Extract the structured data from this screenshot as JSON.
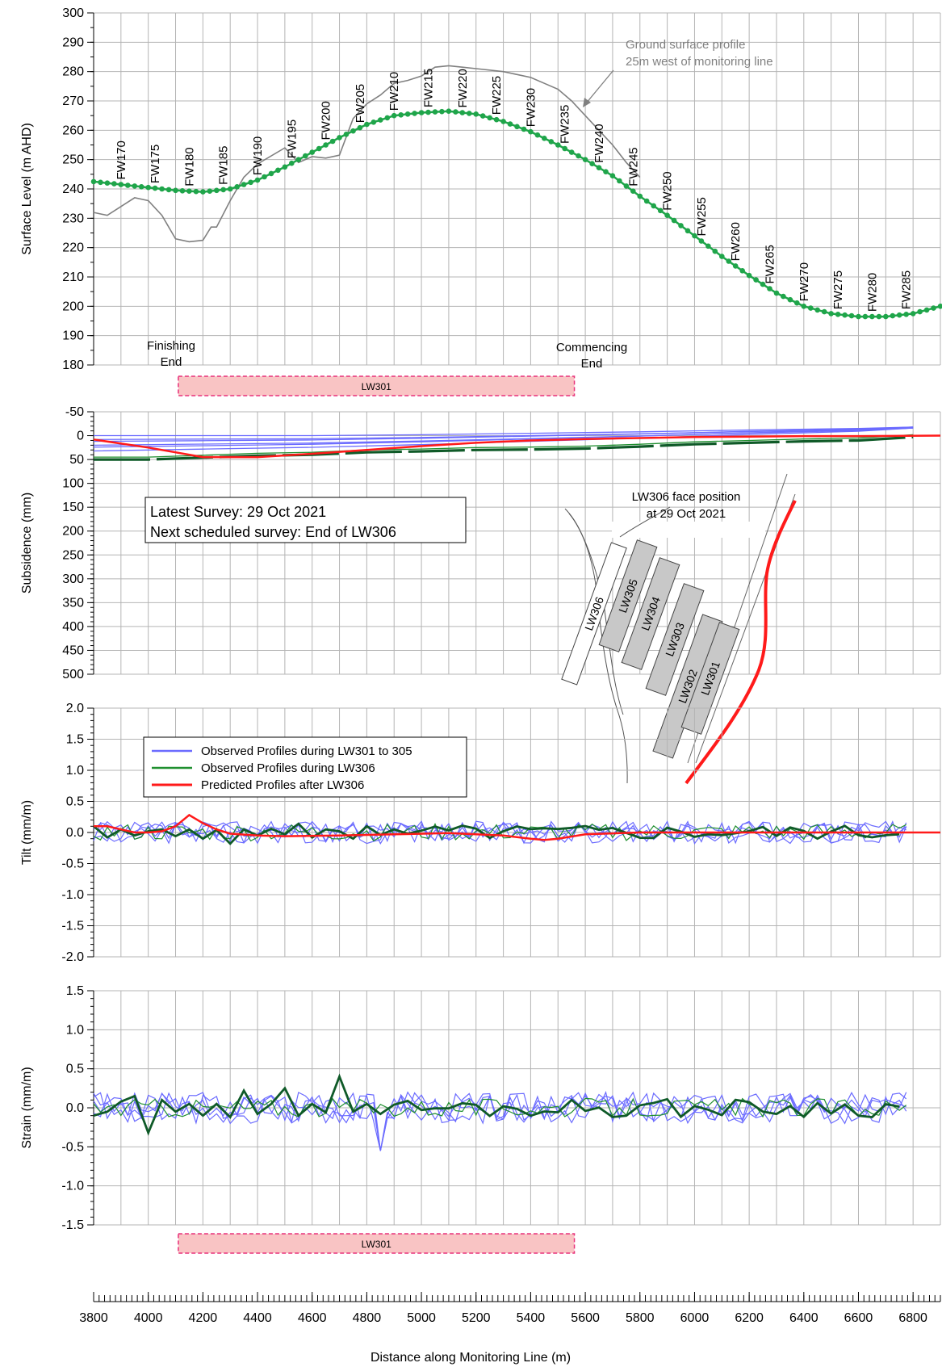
{
  "colors": {
    "grid": "#b4b4b4",
    "axis": "#000000",
    "observed_301_305": "#6b6bff",
    "observed_306": "#1f8f2f",
    "observed_306_dark": "#0f5a28",
    "predicted": "#ff1a1a",
    "ground": "#808080",
    "panel_fill": "#f9c4c4",
    "panel_edge": "#e8307a",
    "marker": "#1fa54a"
  },
  "x_axis": {
    "label": "Distance along Monitoring Line (m)",
    "range": [
      3800,
      6900
    ],
    "ticks": [
      3800,
      4000,
      4200,
      4400,
      4600,
      4800,
      5000,
      5200,
      5400,
      5600,
      5800,
      6000,
      6200,
      6400,
      6600,
      6800
    ]
  },
  "charts": {
    "level": {
      "ylabel": "Surface Level (m AHD)",
      "ylim": [
        180,
        300
      ],
      "yticks": [
        "180",
        "190",
        "200",
        "210",
        "220",
        "230",
        "240",
        "250",
        "260",
        "270",
        "280",
        "290",
        "300"
      ],
      "ground_note": [
        "Ground surface profile",
        "25m west of monitoring line"
      ],
      "finishing_end": [
        "Finishing",
        "End"
      ],
      "commencing_end": [
        "Commencing",
        "End"
      ],
      "panel_label": "LW301"
    },
    "subsidence": {
      "ylabel": "Subsidence (mm)",
      "ylim": [
        -50,
        500
      ],
      "yticks": [
        "-50",
        "0",
        "50",
        "100",
        "150",
        "200",
        "250",
        "300",
        "350",
        "400",
        "450",
        "500"
      ],
      "survey_lines": [
        "Latest Survey: 29 Oct 2021",
        "Next scheduled survey: End of LW306"
      ],
      "face_note": [
        "LW306 face position",
        "at 29 Oct 2021"
      ],
      "inset_panels": [
        "LW306",
        "LW305",
        "LW304",
        "LW303",
        "LW302",
        "LW301"
      ]
    },
    "tilt": {
      "ylabel": "Tilt (mm/m)",
      "ylim": [
        -2.0,
        2.0
      ],
      "yticks": [
        "-2.0",
        "-1.5",
        "-1.0",
        "-0.5",
        "0.0",
        "0.5",
        "1.0",
        "1.5",
        "2.0"
      ],
      "legend": [
        {
          "label": "Observed Profiles during LW301 to 305",
          "color": "#6b6bff"
        },
        {
          "label": "Observed Profiles during LW306",
          "color": "#1f8f2f"
        },
        {
          "label": "Predicted Profiles after LW306",
          "color": "#ff1a1a"
        }
      ]
    },
    "strain": {
      "ylabel": "Strain (mm/m)",
      "ylim": [
        -1.5,
        1.5
      ],
      "yticks": [
        "-1.5",
        "-1.0",
        "-0.5",
        "0.0",
        "0.5",
        "1.0",
        "1.5"
      ],
      "panel_label": "LW301"
    }
  },
  "chart_data": [
    {
      "type": "line",
      "ylabel": "Surface Level (m AHD)",
      "xlim": [
        3800,
        6900
      ],
      "ylim": [
        180,
        300
      ],
      "series": [
        {
          "name": "monitoring line",
          "x": [
            3800,
            3900,
            4000,
            4100,
            4200,
            4300,
            4400,
            4500,
            4600,
            4700,
            4800,
            4900,
            5000,
            5100,
            5200,
            5300,
            5400,
            5500,
            5600,
            5700,
            5800,
            5900,
            6000,
            6100,
            6200,
            6300,
            6400,
            6500,
            6600,
            6700,
            6800,
            6900
          ],
          "y": [
            242.5,
            241.5,
            240.5,
            239.5,
            239,
            240,
            243,
            247.5,
            252.5,
            257.5,
            262,
            265,
            266,
            266.5,
            265.5,
            263,
            259.5,
            255,
            250,
            244.5,
            237.5,
            231,
            224,
            217,
            210.5,
            204.5,
            200,
            197.5,
            196.5,
            196.5,
            197.5,
            200
          ]
        },
        {
          "name": "ground surface",
          "x": [
            3800,
            3850,
            3900,
            3950,
            4000,
            4050,
            4100,
            4150,
            4200,
            4230,
            4250,
            4300,
            4350,
            4400,
            4500,
            4550,
            4600,
            4650,
            4700,
            4750,
            4800,
            4850,
            4900,
            4950,
            5000,
            5050,
            5100,
            5150,
            5200,
            5300,
            5400,
            5450,
            5500,
            5550,
            5600,
            5650,
            5700,
            5750,
            5800
          ],
          "y": [
            232,
            231,
            234,
            237,
            236,
            231,
            223,
            222,
            222.5,
            227,
            227,
            236,
            244,
            248.5,
            254,
            249,
            251,
            250.5,
            251.5,
            264,
            269,
            272,
            276,
            277,
            278.5,
            281.5,
            282,
            281.5,
            281,
            280,
            278,
            276,
            274,
            270,
            265,
            260,
            255,
            249,
            244
          ]
        }
      ],
      "point_labels": [
        "FW170",
        "FW175",
        "FW180",
        "FW185",
        "FW190",
        "FW195",
        "FW200",
        "FW205",
        "FW210",
        "FW215",
        "FW220",
        "FW225",
        "FW230",
        "FW235",
        "FW240",
        "FW245",
        "FW250",
        "FW255",
        "FW260",
        "FW265",
        "FW270",
        "FW275",
        "FW280",
        "FW285"
      ],
      "point_label_x": [
        3900,
        4025,
        4150,
        4275,
        4400,
        4525,
        4650,
        4775,
        4900,
        5025,
        5150,
        5275,
        5400,
        5525,
        5650,
        5775,
        5900,
        6025,
        6150,
        6275,
        6400,
        6525,
        6650,
        6775
      ]
    },
    {
      "type": "line",
      "ylabel": "Subsidence (mm)",
      "xlim": [
        3800,
        6900
      ],
      "ylim": [
        -50,
        500
      ],
      "series": [
        {
          "name": "Predicted Profiles after LW306",
          "x": [
            3800,
            4000,
            4200,
            4400,
            4600,
            4800,
            5000,
            5200,
            5400,
            5600,
            5800,
            6000,
            6200,
            6400,
            6600,
            6900
          ],
          "y": [
            8,
            25,
            45,
            45,
            38,
            30,
            22,
            15,
            10,
            7,
            5,
            3,
            2,
            1,
            1,
            0
          ]
        },
        {
          "name": "Observed Profiles during LW306",
          "x": [
            3800,
            4000,
            4200,
            4400,
            4600,
            4800,
            5000,
            5200,
            5400,
            5600,
            5800,
            6000,
            6200,
            6400,
            6600,
            6800
          ],
          "y": [
            50,
            50,
            46,
            42,
            40,
            35,
            33,
            30,
            29,
            27,
            23,
            18,
            15,
            12,
            10,
            3
          ]
        },
        {
          "name": "Observed Profiles during LW301 to 305",
          "x": [
            3800,
            4200,
            4600,
            5000,
            5400,
            5800,
            6200,
            6600,
            6800
          ],
          "y": [
            0,
            0,
            0,
            -2,
            -5,
            -8,
            -12,
            -15,
            -18
          ]
        }
      ]
    },
    {
      "type": "line",
      "ylabel": "Tilt (mm/m)",
      "xlim": [
        3800,
        6900
      ],
      "ylim": [
        -2.0,
        2.0
      ],
      "series": [
        {
          "name": "Predicted Profiles after LW306",
          "x": [
            3800,
            3850,
            3900,
            3950,
            4000,
            4050,
            4100,
            4150,
            4200,
            4250,
            4300,
            4400,
            4500,
            4700,
            4900,
            5100,
            5300,
            5400,
            5450,
            5500,
            5600,
            5800,
            6900
          ],
          "y": [
            0.1,
            0.1,
            0.05,
            0,
            0,
            0.02,
            0.1,
            0.28,
            0.15,
            0.05,
            -0.02,
            -0.05,
            -0.06,
            -0.05,
            -0.03,
            -0.01,
            -0.05,
            -0.1,
            -0.12,
            -0.1,
            -0.03,
            0,
            0
          ]
        },
        {
          "name": "Observed Profiles during LW306",
          "x": [
            3800,
            3850,
            3900,
            3950,
            4000,
            4050,
            4100,
            4150,
            4200,
            4250,
            4300,
            4350,
            4400,
            4450,
            4500,
            4550,
            4600,
            4650,
            4700,
            4750,
            4800,
            4850,
            4900,
            4950,
            5000
          ],
          "y": [
            0.1,
            -0.08,
            0.05,
            -0.05,
            0.02,
            0.05,
            -0.06,
            0.05,
            -0.1,
            0.04,
            -0.18,
            0.05,
            -0.05,
            0.06,
            -0.03,
            0.14,
            -0.08,
            0.05,
            0.02,
            -0.1,
            0.1,
            -0.04,
            0.05,
            -0.02,
            0.03
          ]
        },
        {
          "name": "Observed Profiles during LW301 to 305",
          "x": [
            3800,
            3850,
            3900,
            3950,
            4000,
            4050,
            4100,
            4150,
            4200,
            4250,
            4300,
            4350,
            4400,
            4450,
            4500,
            4550,
            4600,
            4650,
            4700,
            4750,
            4800
          ],
          "y": [
            0.22,
            -0.15,
            0.1,
            -0.1,
            0.18,
            -0.12,
            0.05,
            -0.05,
            0.2,
            -0.16,
            0.12,
            -0.06,
            0.15,
            -0.2,
            0.06,
            0.2,
            -0.12,
            0.1,
            -0.18,
            0.16,
            -0.08
          ]
        }
      ]
    },
    {
      "type": "line",
      "ylabel": "Strain (mm/m)",
      "xlim": [
        3800,
        6900
      ],
      "ylim": [
        -1.5,
        1.5
      ],
      "series": [
        {
          "name": "Observed Profiles during LW306",
          "x": [
            3800,
            3850,
            3900,
            3950,
            4000,
            4050,
            4100,
            4150,
            4200,
            4250,
            4300,
            4350,
            4400,
            4450,
            4500,
            4550,
            4600,
            4650,
            4700,
            4750,
            4800,
            4850,
            4900
          ],
          "y": [
            -0.1,
            -0.05,
            0.08,
            0.15,
            -0.32,
            0.1,
            -0.05,
            0.05,
            -0.1,
            0.05,
            -0.12,
            0.22,
            -0.08,
            0.05,
            0.25,
            -0.1,
            0.05,
            -0.06,
            0.4,
            -0.05,
            0.05,
            -0.08,
            0.04
          ]
        },
        {
          "name": "Observed Profiles during LW301 to 305",
          "x": [
            3800,
            3850,
            3900,
            3950,
            4000,
            4050,
            4100,
            4150,
            4200,
            4250,
            4300,
            4350,
            4400,
            4450,
            4500,
            4550,
            4600,
            4650,
            4700,
            4750,
            4800,
            4850,
            4900
          ],
          "y": [
            0.1,
            -0.2,
            0.05,
            0.15,
            -0.1,
            0.2,
            -0.15,
            0.05,
            0.2,
            -0.1,
            0.1,
            -0.05,
            0.15,
            -0.12,
            0.2,
            -0.15,
            0.1,
            -0.2,
            0.15,
            -0.1,
            0.05,
            -0.6,
            0.05
          ]
        }
      ]
    }
  ]
}
